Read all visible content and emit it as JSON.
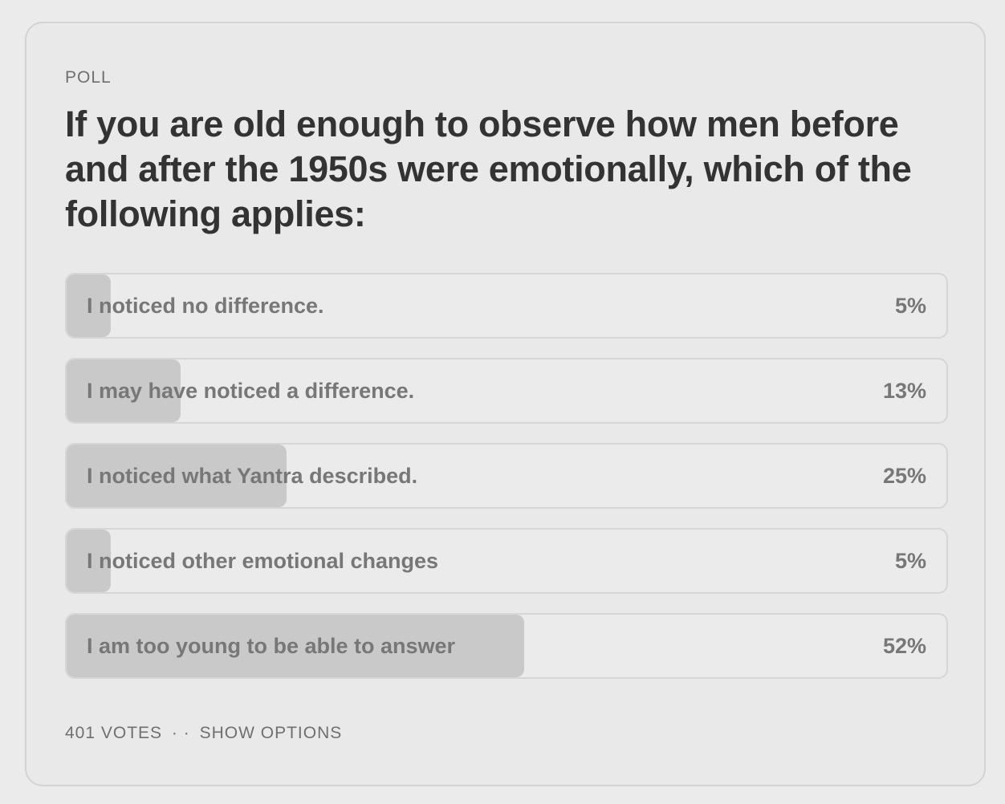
{
  "poll": {
    "label": "POLL",
    "question": "If you are old enough to observe how men before and after the 1950s were emotionally, which of the following applies:",
    "options": [
      {
        "text": "I noticed no difference.",
        "percent_label": "5%",
        "fraction": 0.05
      },
      {
        "text": "I may have noticed a difference.",
        "percent_label": "13%",
        "fraction": 0.13
      },
      {
        "text": "I noticed what Yantra described.",
        "percent_label": "25%",
        "fraction": 0.25
      },
      {
        "text": "I noticed other emotional changes",
        "percent_label": "5%",
        "fraction": 0.05
      },
      {
        "text": "I am too young to be able to answer",
        "percent_label": "52%",
        "fraction": 0.52
      }
    ],
    "footer": {
      "votes": "401 VOTES",
      "separator": "· ·",
      "show_options": "SHOW OPTIONS"
    }
  },
  "colors": {
    "background": "#ebebeb",
    "fill": "#c9c9c9",
    "border": "#d6d6d6",
    "question_text": "#333333",
    "option_text": "#777777"
  }
}
